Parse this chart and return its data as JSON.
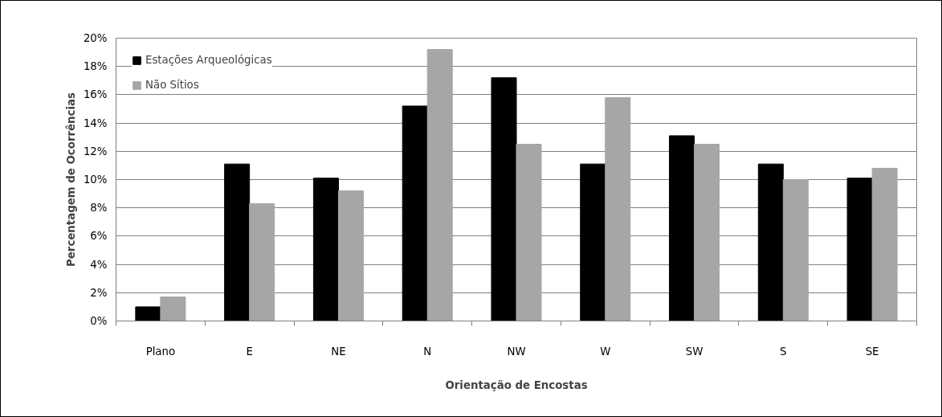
{
  "chart_data": {
    "type": "bar",
    "xlabel": "Orientação de Encostas",
    "ylabel": "Percentagem de Ocorrências",
    "categories": [
      "Plano",
      "E",
      "NE",
      "N",
      "NW",
      "W",
      "SW",
      "S",
      "SE"
    ],
    "series": [
      {
        "name": "Estações Arqueológicas",
        "color": "#000000",
        "values": [
          1.0,
          11.1,
          10.1,
          15.2,
          17.2,
          11.1,
          13.1,
          11.1,
          10.1
        ]
      },
      {
        "name": "Não Sítios",
        "color": "#a6a6a6",
        "values": [
          1.7,
          8.3,
          9.2,
          19.2,
          12.5,
          15.8,
          12.5,
          10.0,
          10.8
        ]
      }
    ],
    "ylim": [
      0,
      20
    ],
    "yticks": [
      {
        "value": 0,
        "label": "0%"
      },
      {
        "value": 2,
        "label": "2%"
      },
      {
        "value": 4,
        "label": "4%"
      },
      {
        "value": 6,
        "label": "6%"
      },
      {
        "value": 8,
        "label": "8%"
      },
      {
        "value": 10,
        "label": "10%"
      },
      {
        "value": 12,
        "label": "12%"
      },
      {
        "value": 14,
        "label": "14%"
      },
      {
        "value": 16,
        "label": "16%"
      },
      {
        "value": 18,
        "label": "18%"
      },
      {
        "value": 20,
        "label": "20%"
      }
    ],
    "grid": "y",
    "legend": "top left"
  }
}
